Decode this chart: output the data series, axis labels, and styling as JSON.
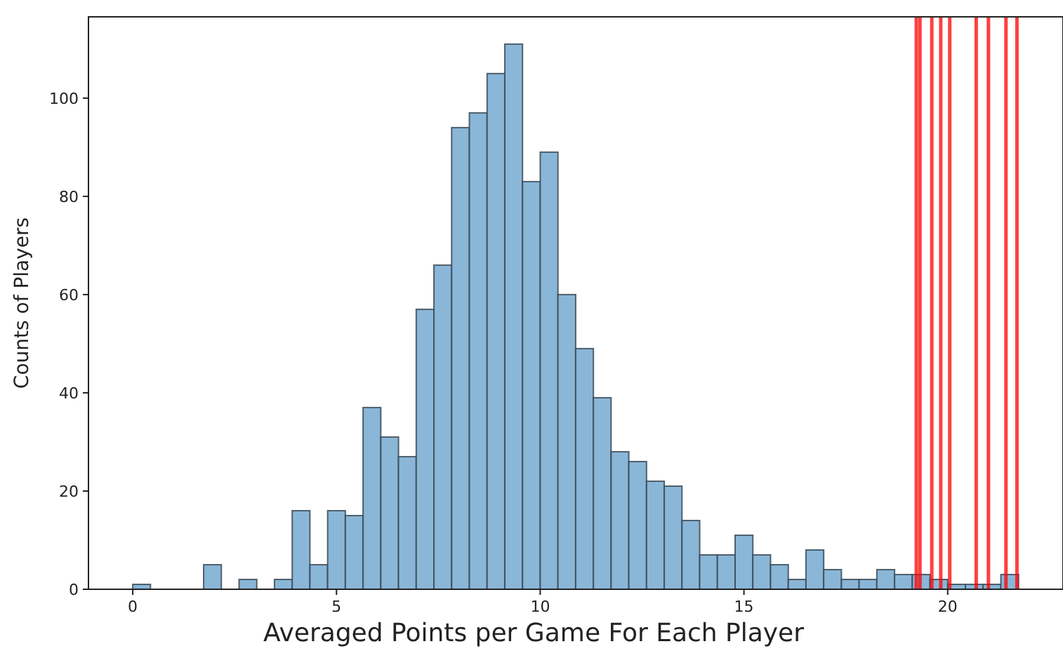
{
  "chart_data": {
    "type": "histogram",
    "xlabel": "Averaged Points per Game For Each Player",
    "ylabel": "Counts of Players",
    "bins": [
      0,
      0.4348,
      0.8696,
      1.3044,
      1.7392,
      2.174,
      2.6088,
      3.0436,
      3.4784,
      3.9132,
      4.348,
      4.7828,
      5.2176,
      5.6524,
      6.0872,
      6.522,
      6.9568,
      7.3916,
      7.8264,
      8.2612,
      8.696,
      9.1308,
      9.5656,
      10.0004,
      10.4352,
      10.87,
      11.3048,
      11.7396,
      12.1744,
      12.6092,
      13.044,
      13.4788,
      13.9136,
      14.3484,
      14.7832,
      15.218,
      15.6528,
      16.0876,
      16.5224,
      16.9572,
      17.392,
      17.8268,
      18.2616,
      18.6964,
      19.1312,
      19.566,
      20.0008,
      20.4356,
      20.8704,
      21.3052,
      21.74
    ],
    "values": [
      1,
      0,
      0,
      0,
      5,
      0,
      2,
      0,
      2,
      16,
      5,
      16,
      15,
      37,
      31,
      27,
      57,
      66,
      94,
      97,
      105,
      111,
      83,
      89,
      60,
      49,
      39,
      28,
      26,
      22,
      21,
      14,
      7,
      7,
      11,
      7,
      5,
      2,
      8,
      4,
      2,
      2,
      4,
      3,
      3,
      2,
      1,
      1,
      1,
      3
    ],
    "color": "#8ab6d8",
    "xlim": [
      -1.087,
      22.83
    ],
    "xticks": [
      0,
      5,
      10,
      15,
      20
    ],
    "ylim": [
      0,
      116.55
    ],
    "yticks": [
      0,
      20,
      40,
      60,
      80,
      100
    ],
    "ref_lines": [
      {
        "axis": "x",
        "value": 19.23,
        "color": "#ff0000"
      },
      {
        "axis": "x",
        "value": 19.32,
        "color": "#ff0000"
      },
      {
        "axis": "x",
        "value": 19.61,
        "color": "#ff0000"
      },
      {
        "axis": "x",
        "value": 19.83,
        "color": "#ff0000"
      },
      {
        "axis": "x",
        "value": 20.05,
        "color": "#ff0000"
      },
      {
        "axis": "x",
        "value": 20.7,
        "color": "#ff0000"
      },
      {
        "axis": "x",
        "value": 21.0,
        "color": "#ff0000"
      },
      {
        "axis": "x",
        "value": 21.43,
        "color": "#ff0000"
      },
      {
        "axis": "x",
        "value": 21.7,
        "color": "#ff0000"
      }
    ]
  }
}
